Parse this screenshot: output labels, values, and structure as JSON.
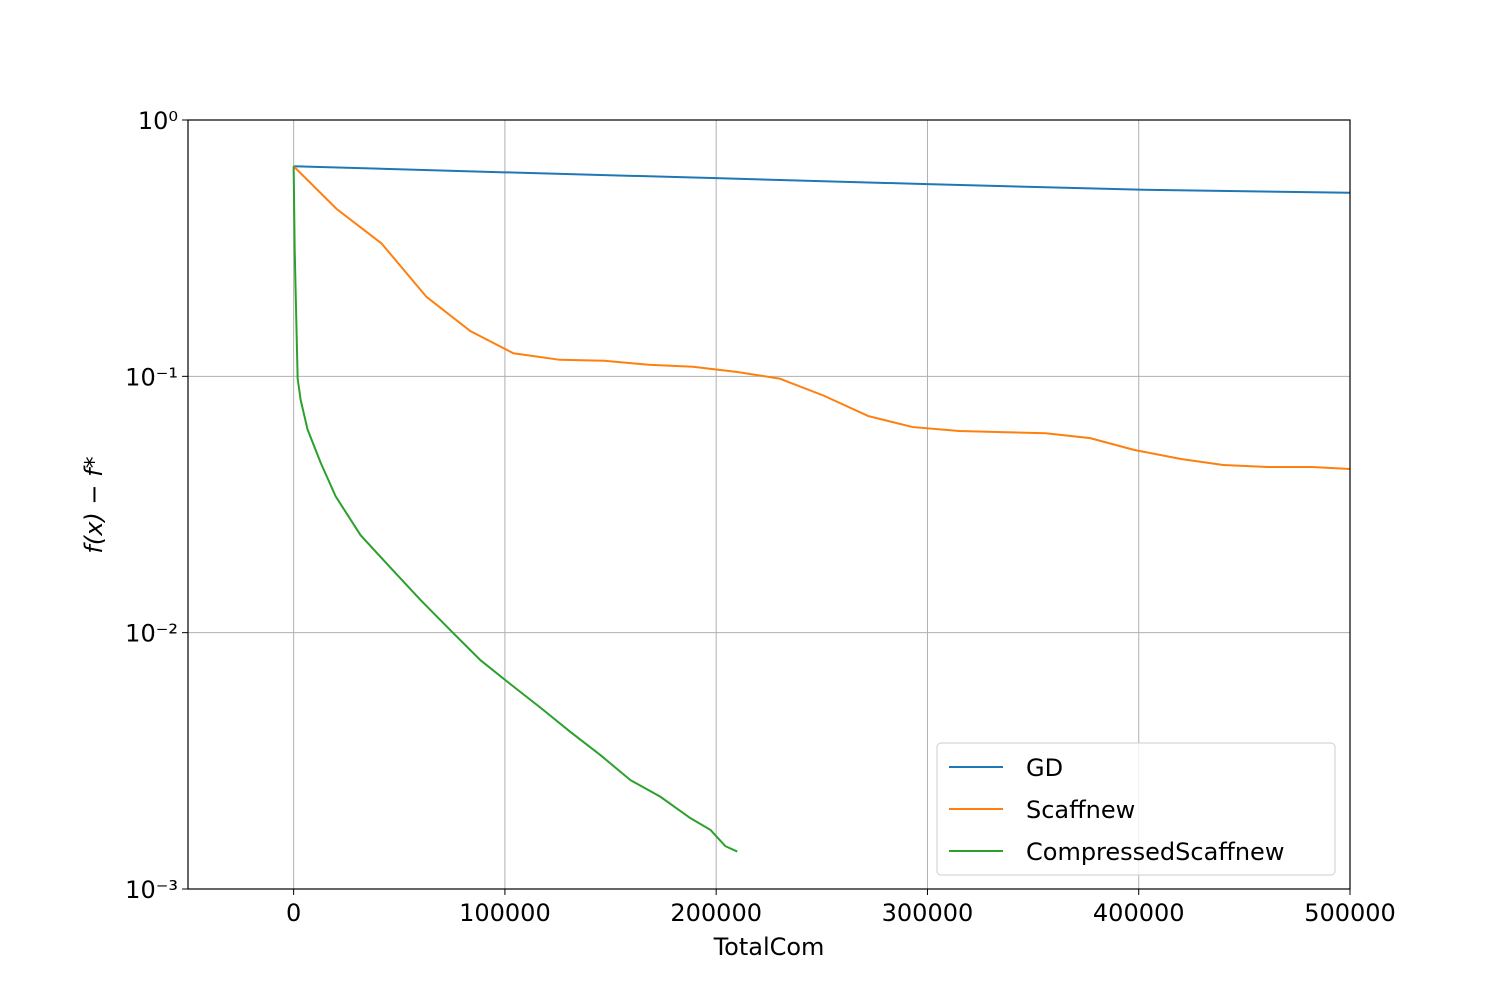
{
  "chart_data": {
    "type": "line",
    "x_label": "TotalCom",
    "y_label": "f(x) − f*",
    "xlim": [
      -50000,
      500000
    ],
    "xticks": [
      0,
      100000,
      200000,
      300000,
      400000,
      500000
    ],
    "ylim": [
      0.001,
      1
    ],
    "yticks": [
      {
        "value": 1,
        "label": "10⁰"
      },
      {
        "value": 0.1,
        "label": "10⁻¹"
      },
      {
        "value": 0.01,
        "label": "10⁻²"
      },
      {
        "value": 0.001,
        "label": "10⁻³"
      }
    ],
    "y_scale": "log",
    "grid": true,
    "legend": "lower right",
    "series": [
      {
        "name": "GD",
        "color": "#1f77b4",
        "x": [
          0,
          100000,
          200000,
          300000,
          400000,
          500000
        ],
        "values": [
          0.66,
          0.625,
          0.593,
          0.562,
          0.535,
          0.52
        ]
      },
      {
        "name": "Scaffnew",
        "color": "#ff7f0e",
        "x": [
          0,
          20300,
          41600,
          62900,
          83700,
          104000,
          126000,
          147000,
          168000,
          189000,
          210000,
          230000,
          251000,
          272000,
          293000,
          315000,
          335000,
          356000,
          377000,
          398000,
          420000,
          440000,
          461000,
          482000,
          500000
        ],
        "values": [
          0.66,
          0.45,
          0.33,
          0.204,
          0.15,
          0.123,
          0.116,
          0.115,
          0.111,
          0.109,
          0.104,
          0.098,
          0.084,
          0.07,
          0.0634,
          0.0612,
          0.0606,
          0.06,
          0.0574,
          0.0516,
          0.0476,
          0.0451,
          0.0443,
          0.0443,
          0.0435
        ]
      },
      {
        "name": "CompressedScaffnew",
        "color": "#2ca02c",
        "x": [
          0,
          500,
          1900,
          3300,
          6600,
          12800,
          19900,
          31700,
          45900,
          60100,
          74300,
          88500,
          102600,
          116800,
          131000,
          145200,
          159400,
          173600,
          187800,
          197300,
          204300,
          210000
        ],
        "values": [
          0.66,
          0.31,
          0.098,
          0.081,
          0.062,
          0.046,
          0.034,
          0.024,
          0.0179,
          0.0134,
          0.0102,
          0.0078,
          0.0063,
          0.0051,
          0.0041,
          0.00333,
          0.00266,
          0.00229,
          0.00189,
          0.0017,
          0.00147,
          0.0014
        ]
      }
    ]
  }
}
